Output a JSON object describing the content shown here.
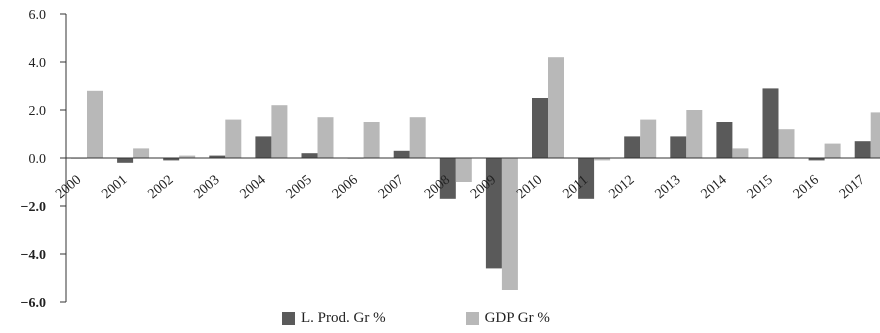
{
  "chart_data": {
    "type": "bar",
    "categories": [
      "2000",
      "2001",
      "2002",
      "2003",
      "2004",
      "2005",
      "2006",
      "2007",
      "2008",
      "2009",
      "2010",
      "2011",
      "2012",
      "2013",
      "2014",
      "2015",
      "2016",
      "2017"
    ],
    "series": [
      {
        "name": "L. Prod. Gr %",
        "color": "#5a5a5a",
        "values": [
          0.0,
          -0.2,
          -0.1,
          0.1,
          0.9,
          0.2,
          0.0,
          0.3,
          -1.7,
          -4.6,
          2.5,
          -1.7,
          0.9,
          0.9,
          1.5,
          2.9,
          -0.1,
          0.7
        ]
      },
      {
        "name": "GDP Gr %",
        "color": "#b8b8b8",
        "values": [
          2.8,
          0.4,
          0.1,
          1.6,
          2.2,
          1.7,
          1.5,
          1.7,
          -1.0,
          -5.5,
          4.2,
          -0.1,
          1.6,
          2.0,
          0.4,
          1.2,
          0.6,
          1.9
        ]
      }
    ],
    "ylim": [
      -6.0,
      6.0
    ],
    "yticks": [
      "6.0",
      "4.0",
      "2.0",
      "0.0",
      "−2.0",
      "−4.0",
      "−6.0"
    ],
    "legend_position": "bottom",
    "grid": false
  }
}
